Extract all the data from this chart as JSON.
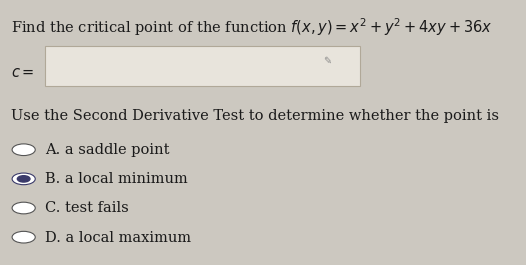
{
  "bg_color": "#ccc8c0",
  "text_color": "#1a1a1a",
  "box_facecolor": "#e8e4dc",
  "box_edgecolor": "#b0a898",
  "radio_edge_color": "#555555",
  "radio_fill_color": "#555577",
  "selected_fill": "#3a3a6a",
  "selected_edge": "#3a3a6a",
  "title_plain": "Find the critical point of the function ",
  "title_formula": "$f(x,y)=x^2+y^2+4xy+36x$",
  "c_label": "$c=$",
  "sdt_line": "Use the Second Derivative Test to determine whether the point is",
  "options": [
    {
      "letter": "A.",
      "text": "a saddle point",
      "selected": false
    },
    {
      "letter": "B.",
      "text": "a local minimum",
      "selected": true
    },
    {
      "letter": "C.",
      "text": "test fails",
      "selected": false
    },
    {
      "letter": "D.",
      "text": "a local maximum",
      "selected": false
    }
  ],
  "fs_title": 10.5,
  "fs_body": 10.5,
  "fs_options": 10.5
}
